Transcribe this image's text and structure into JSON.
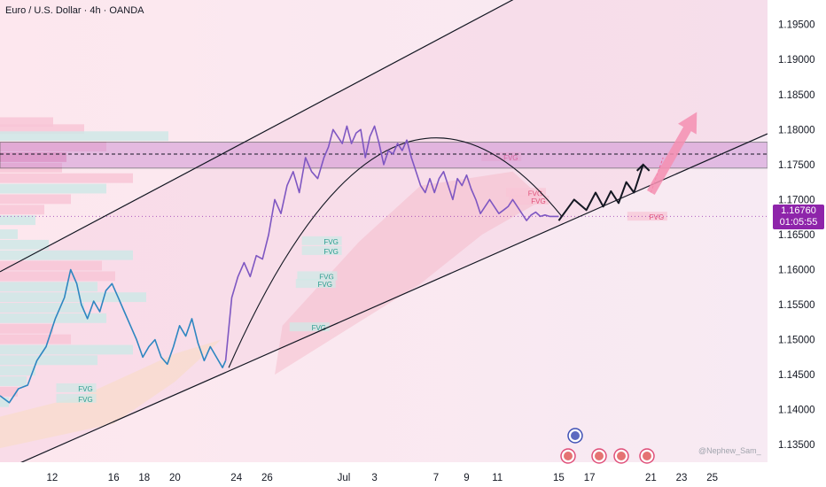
{
  "header": {
    "title": "Euro / U.S. Dollar · 4h · OANDA"
  },
  "price_tag": {
    "price": "1.16760",
    "countdown": "01:05:55",
    "color": "#8e24aa"
  },
  "watermark": "@Nephew_Sam_",
  "colors": {
    "price_line": "#2e86c1",
    "price_line_recent": "#7e57c2",
    "projection": "#131722",
    "target_arrow": "#f48fb1",
    "zone": "#d1a3d8",
    "fvg_blue": "#cfe8e6",
    "fvg_pink": "#f8c6d6"
  },
  "icons": [
    "event-globe-icon",
    "us-flag-icon"
  ],
  "chart_data": {
    "type": "line",
    "symbol": "EURUSD",
    "timeframe": "4h",
    "ylim": [
      1.1325,
      1.1985
    ],
    "y_ticks": [
      1.135,
      1.14,
      1.145,
      1.15,
      1.155,
      1.16,
      1.165,
      1.17,
      1.175,
      1.18,
      1.185,
      1.19,
      1.195
    ],
    "y_tick_labels": [
      "1.13500",
      "1.14000",
      "1.14500",
      "1.15000",
      "1.15500",
      "1.16000",
      "1.16500",
      "1.17000",
      "1.17500",
      "1.18000",
      "1.18500",
      "1.19000",
      "1.19500"
    ],
    "x_tick_labels": [
      "12",
      "16",
      "18",
      "20",
      "24",
      "26",
      "Jul",
      "3",
      "7",
      "9",
      "11",
      "15",
      "17",
      "21",
      "23",
      "25"
    ],
    "x_tick_days": [
      12,
      16,
      18,
      20,
      24,
      26,
      31,
      33,
      37,
      39,
      41,
      45,
      47,
      51,
      53,
      55
    ],
    "xlim": [
      8.6,
      58.6
    ],
    "series": [
      {
        "x": [
          8.6,
          9.2,
          9.8,
          10.4,
          11.0,
          11.6,
          12.2,
          12.8,
          13.2,
          13.6,
          13.9,
          14.3,
          14.7,
          15.1,
          15.5,
          15.9,
          16.3,
          16.7,
          17.1,
          17.5,
          17.9,
          18.3,
          18.7,
          19.1,
          19.5,
          19.9,
          20.3,
          20.7,
          21.1,
          21.5,
          21.9,
          22.3,
          22.7,
          23.1,
          23.3
        ],
        "y": [
          1.142,
          1.141,
          1.143,
          1.1435,
          1.147,
          1.149,
          1.153,
          1.156,
          1.16,
          1.158,
          1.155,
          1.153,
          1.1555,
          1.154,
          1.157,
          1.158,
          1.156,
          1.154,
          1.152,
          1.15,
          1.1475,
          1.149,
          1.15,
          1.1475,
          1.1465,
          1.149,
          1.152,
          1.1505,
          1.153,
          1.1495,
          1.147,
          1.149,
          1.1475,
          1.146,
          1.147
        ]
      },
      {
        "x": [
          23.3,
          23.7,
          24.1,
          24.5,
          24.9,
          25.3,
          25.7,
          26.1,
          26.5,
          26.9,
          27.3,
          27.7,
          28.1,
          28.5,
          28.9,
          29.3,
          29.7,
          30.0,
          30.3,
          30.6,
          30.9,
          31.2,
          31.5,
          31.8,
          32.1,
          32.4,
          32.7,
          33.0,
          33.3,
          33.6,
          33.9,
          34.2,
          34.5,
          34.8,
          35.1,
          35.4,
          35.7,
          36.0,
          36.3,
          36.6,
          36.9,
          37.2,
          37.5,
          37.8,
          38.1,
          38.4,
          38.7,
          39.0,
          39.3,
          39.6,
          39.9,
          40.2,
          40.5,
          40.8,
          41.1,
          41.4,
          41.7,
          42.0,
          42.3,
          42.6,
          42.9,
          43.2,
          43.5,
          43.8,
          44.1,
          44.4,
          44.7,
          45.0
        ],
        "y": [
          1.147,
          1.156,
          1.159,
          1.161,
          1.159,
          1.162,
          1.1615,
          1.165,
          1.17,
          1.168,
          1.172,
          1.174,
          1.171,
          1.176,
          1.174,
          1.173,
          1.176,
          1.1775,
          1.18,
          1.179,
          1.178,
          1.1805,
          1.178,
          1.1795,
          1.18,
          1.176,
          1.179,
          1.1805,
          1.178,
          1.175,
          1.177,
          1.1765,
          1.178,
          1.177,
          1.1785,
          1.176,
          1.174,
          1.172,
          1.171,
          1.173,
          1.171,
          1.173,
          1.174,
          1.172,
          1.17,
          1.173,
          1.172,
          1.1735,
          1.1715,
          1.17,
          1.168,
          1.169,
          1.17,
          1.169,
          1.168,
          1.1685,
          1.169,
          1.17,
          1.169,
          1.168,
          1.167,
          1.1678,
          1.1682,
          1.1676,
          1.1678,
          1.1676,
          1.1676,
          1.1676
        ]
      }
    ],
    "projection_path": {
      "x": [
        45.0,
        46.0,
        46.8,
        47.4,
        47.9,
        48.4,
        48.9,
        49.4,
        49.9,
        50.5
      ],
      "y": [
        1.167,
        1.17,
        1.1685,
        1.171,
        1.169,
        1.1712,
        1.1695,
        1.1725,
        1.171,
        1.175
      ]
    },
    "target_arrow": {
      "x_from": 51.0,
      "y_from": 1.171,
      "x_to": 54.0,
      "y_to": 1.1825
    },
    "trendlines": [
      {
        "x": [
          8.6,
          43.7
        ],
        "y": [
          1.1597,
          1.2005
        ]
      },
      {
        "x": [
          9.5,
          58.6
        ],
        "y": [
          1.132,
          1.1794
        ]
      }
    ],
    "zone": {
      "y_top": 1.1782,
      "y_bottom": 1.1745,
      "mid": 1.1765
    },
    "fvg_labels": [
      {
        "text": "FVG",
        "x": 30.0,
        "y": 1.164
      },
      {
        "text": "FVG",
        "x": 30.0,
        "y": 1.1626
      },
      {
        "text": "FVG",
        "x": 29.7,
        "y": 1.159
      },
      {
        "text": "FVG",
        "x": 29.6,
        "y": 1.1579
      },
      {
        "text": "FVG",
        "x": 29.2,
        "y": 1.1517
      },
      {
        "text": "FVG",
        "x": 14.0,
        "y": 1.143
      },
      {
        "text": "FVG",
        "x": 14.0,
        "y": 1.1415
      },
      {
        "text": "FVG",
        "x": 43.3,
        "y": 1.1709
      },
      {
        "text": "FVG",
        "x": 43.5,
        "y": 1.1698
      },
      {
        "text": "FVG",
        "x": 51.2,
        "y": 1.1675
      },
      {
        "text": "FVG",
        "x": 41.7,
        "y": 1.176
      }
    ]
  }
}
